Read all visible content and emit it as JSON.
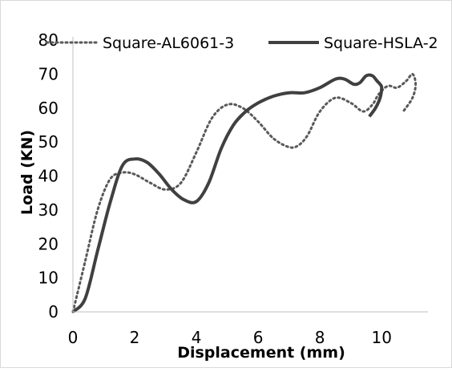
{
  "chart_data": {
    "type": "line",
    "title": "",
    "xlabel": "Displacement (mm)",
    "ylabel": "Load (KN)",
    "xlim": [
      0,
      11.5
    ],
    "ylim": [
      0,
      80
    ],
    "xticks": [
      "0",
      "2",
      "4",
      "6",
      "8",
      "10"
    ],
    "xtick_values": [
      0,
      2,
      4,
      6,
      8,
      10
    ],
    "yticks": [
      "0",
      "10",
      "20",
      "30",
      "40",
      "50",
      "60",
      "70",
      "80"
    ],
    "ytick_values": [
      0,
      10,
      20,
      30,
      40,
      50,
      60,
      70,
      80
    ],
    "grid": false,
    "legend_position": "top",
    "series": [
      {
        "name": "Square-AL6061-3",
        "style": "dotted",
        "color": "#595959",
        "x": [
          0,
          0.4,
          0.8,
          1.2,
          1.6,
          2.0,
          2.5,
          3.0,
          3.5,
          4.0,
          4.5,
          5.0,
          5.5,
          6.0,
          6.5,
          7.0,
          7.3,
          7.6,
          8.0,
          8.5,
          9.0,
          9.4,
          9.7,
          9.9,
          10.2,
          10.5,
          10.8,
          11.0,
          11.1,
          11.0,
          10.7
        ],
        "y": [
          0,
          15,
          30,
          39,
          41,
          40.5,
          38,
          36,
          38,
          47,
          57,
          61,
          60,
          56,
          51,
          48.5,
          49,
          52,
          59,
          63,
          61.5,
          59,
          61,
          64,
          66.5,
          66,
          68,
          70,
          67,
          63,
          59
        ]
      },
      {
        "name": "Square-HSLA-2",
        "style": "solid",
        "color": "#404040",
        "x": [
          0,
          0.4,
          0.8,
          1.2,
          1.6,
          2.0,
          2.4,
          2.8,
          3.2,
          3.6,
          4.0,
          4.4,
          4.8,
          5.2,
          5.6,
          6.0,
          6.5,
          7.0,
          7.5,
          8.0,
          8.5,
          8.8,
          9.1,
          9.3,
          9.5,
          9.7,
          9.85,
          9.95,
          10.0,
          9.95,
          9.8,
          9.6
        ],
        "y": [
          0,
          4,
          18,
          32,
          43,
          45,
          44,
          40.5,
          36,
          33,
          32.5,
          38,
          48,
          55,
          59,
          61.5,
          63.5,
          64.5,
          64.5,
          66,
          68.5,
          68.5,
          67,
          67.5,
          69.5,
          69.5,
          68,
          67,
          66,
          63,
          60,
          57.5
        ]
      }
    ]
  }
}
